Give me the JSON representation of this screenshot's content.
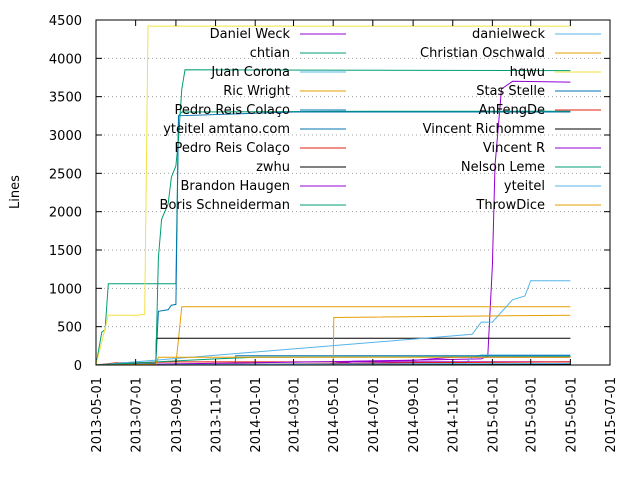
{
  "chart_data": {
    "type": "line",
    "xlabel": "",
    "ylabel": "Lines",
    "ylim": [
      0,
      4500
    ],
    "xlim": [
      "2013-05-01",
      "2015-07-01"
    ],
    "x_ticks": [
      "2013-05-01",
      "2013-07-01",
      "2013-09-01",
      "2013-11-01",
      "2014-01-01",
      "2014-03-01",
      "2014-05-01",
      "2014-07-01",
      "2014-09-01",
      "2014-11-01",
      "2015-01-01",
      "2015-03-01",
      "2015-05-01",
      "2015-07-01"
    ],
    "y_ticks": [
      0,
      500,
      1000,
      1500,
      2000,
      2500,
      3000,
      3500,
      4000,
      4500
    ],
    "grid": "horizontal dotted",
    "legend_position": "top, two columns",
    "series": [
      {
        "name": "Daniel Weck",
        "color": "#9400d3",
        "points": [
          [
            "2013-05-01",
            0
          ],
          [
            "2014-04-20",
            10
          ],
          [
            "2014-06-01",
            50
          ],
          [
            "2014-12-15",
            80
          ],
          [
            "2014-12-25",
            120
          ],
          [
            "2015-01-01",
            1300
          ],
          [
            "2015-01-05",
            2600
          ],
          [
            "2015-01-15",
            3600
          ],
          [
            "2015-02-01",
            3700
          ],
          [
            "2015-05-01",
            3690
          ]
        ]
      },
      {
        "name": "chtian",
        "color": "#009e73",
        "points": [
          [
            "2013-05-01",
            0
          ],
          [
            "2013-05-10",
            430
          ],
          [
            "2013-05-15",
            460
          ],
          [
            "2013-05-20",
            1060
          ],
          [
            "2013-09-01",
            1060
          ],
          [
            "2013-09-05",
            3250
          ],
          [
            "2013-09-10",
            3300
          ],
          [
            "2014-07-01",
            3310
          ],
          [
            "2015-05-01",
            3310
          ]
        ]
      },
      {
        "name": "Juan Corona",
        "color": "#56b4e9",
        "points": [
          [
            "2013-05-01",
            0
          ],
          [
            "2014-11-20",
            20
          ],
          [
            "2014-12-01",
            100
          ],
          [
            "2014-12-15",
            130
          ],
          [
            "2015-05-01",
            130
          ]
        ]
      },
      {
        "name": "Ric Wright",
        "color": "#e69f00",
        "points": [
          [
            "2013-05-01",
            0
          ],
          [
            "2013-09-01",
            10
          ],
          [
            "2013-09-10",
            760
          ],
          [
            "2015-05-01",
            760
          ]
        ]
      },
      {
        "name": "Pedro Reis Colaço",
        "color": "#0072b2",
        "points": [
          [
            "2013-05-01",
            0
          ],
          [
            "2013-12-01",
            0
          ],
          [
            "2013-12-02",
            120
          ],
          [
            "2015-05-01",
            120
          ]
        ]
      },
      {
        "name": "yteitel amtano.com",
        "color": "#0072b2",
        "points": [
          [
            "2013-05-01",
            0
          ],
          [
            "2013-08-01",
            20
          ],
          [
            "2013-08-05",
            700
          ],
          [
            "2013-08-20",
            720
          ],
          [
            "2013-08-25",
            780
          ],
          [
            "2013-09-01",
            790
          ],
          [
            "2013-09-05",
            3250
          ],
          [
            "2014-03-01",
            3300
          ],
          [
            "2015-05-01",
            3300
          ]
        ]
      },
      {
        "name": "Pedro Reis Colaço",
        "color": "#e51e10",
        "points": [
          [
            "2013-05-01",
            0
          ],
          [
            "2013-06-01",
            30
          ],
          [
            "2013-07-01",
            30
          ],
          [
            "2013-09-01",
            40
          ],
          [
            "2015-05-01",
            40
          ]
        ]
      },
      {
        "name": "zwhu",
        "color": "#000000",
        "points": [
          [
            "2013-05-01",
            0
          ],
          [
            "2013-08-01",
            0
          ],
          [
            "2013-08-02",
            350
          ],
          [
            "2015-05-01",
            350
          ]
        ]
      },
      {
        "name": "Brandon Haugen",
        "color": "#9400d3",
        "points": [
          [
            "2013-05-01",
            0
          ],
          [
            "2014-05-01",
            10
          ],
          [
            "2014-06-01",
            40
          ],
          [
            "2015-05-01",
            40
          ]
        ]
      },
      {
        "name": "Boris Schneiderman",
        "color": "#009e73",
        "points": [
          [
            "2013-05-01",
            0
          ],
          [
            "2013-08-01",
            20
          ],
          [
            "2013-08-05",
            1400
          ],
          [
            "2013-08-10",
            1900
          ],
          [
            "2013-08-20",
            2100
          ],
          [
            "2013-08-25",
            2450
          ],
          [
            "2013-09-01",
            2600
          ],
          [
            "2013-09-05",
            2950
          ],
          [
            "2013-09-10",
            3600
          ],
          [
            "2013-09-15",
            3850
          ],
          [
            "2015-05-01",
            3840
          ]
        ]
      },
      {
        "name": "danielweck",
        "color": "#56b4e9",
        "points": [
          [
            "2013-05-01",
            0
          ],
          [
            "2014-12-01",
            400
          ],
          [
            "2014-12-15",
            560
          ],
          [
            "2015-01-01",
            560
          ],
          [
            "2015-02-01",
            850
          ],
          [
            "2015-02-20",
            900
          ],
          [
            "2015-03-01",
            1100
          ],
          [
            "2015-05-01",
            1100
          ]
        ]
      },
      {
        "name": "Christian Oschwald",
        "color": "#e69f00",
        "points": [
          [
            "2013-05-01",
            0
          ],
          [
            "2014-05-01",
            0
          ],
          [
            "2014-05-02",
            620
          ],
          [
            "2015-05-01",
            650
          ]
        ]
      },
      {
        "name": "hqwu",
        "color": "#f0e442",
        "points": [
          [
            "2013-05-01",
            0
          ],
          [
            "2013-05-10",
            300
          ],
          [
            "2013-05-20",
            650
          ],
          [
            "2013-07-01",
            650
          ],
          [
            "2013-07-15",
            660
          ],
          [
            "2013-07-20",
            4420
          ],
          [
            "2015-05-01",
            4420
          ]
        ]
      },
      {
        "name": "Stas Stelle",
        "color": "#0072b2",
        "points": [
          [
            "2013-05-01",
            0
          ],
          [
            "2015-05-01",
            0
          ]
        ]
      },
      {
        "name": "AnFengDe",
        "color": "#e51e10",
        "points": [
          [
            "2013-05-01",
            0
          ],
          [
            "2014-06-01",
            20
          ],
          [
            "2014-09-01",
            30
          ],
          [
            "2015-05-01",
            40
          ]
        ]
      },
      {
        "name": "Vincent Richomme",
        "color": "#000000",
        "points": [
          [
            "2013-05-01",
            0
          ],
          [
            "2014-11-01",
            10
          ],
          [
            "2015-05-01",
            10
          ]
        ]
      },
      {
        "name": "Vincent R",
        "color": "#9400d3",
        "points": [
          [
            "2013-05-01",
            0
          ],
          [
            "2014-09-01",
            60
          ],
          [
            "2014-11-01",
            100
          ],
          [
            "2015-05-01",
            100
          ]
        ]
      },
      {
        "name": "Nelson Leme",
        "color": "#009e73",
        "points": [
          [
            "2013-05-01",
            0
          ],
          [
            "2013-11-01",
            80
          ],
          [
            "2014-01-01",
            100
          ],
          [
            "2015-05-01",
            110
          ]
        ]
      },
      {
        "name": "yteitel",
        "color": "#56b4e9",
        "points": [
          [
            "2013-05-01",
            0
          ],
          [
            "2014-01-01",
            10
          ],
          [
            "2015-05-01",
            20
          ]
        ]
      },
      {
        "name": "ThrowDice",
        "color": "#e69f00",
        "points": [
          [
            "2013-05-01",
            0
          ],
          [
            "2013-08-01",
            10
          ],
          [
            "2013-08-05",
            100
          ],
          [
            "2015-05-01",
            100
          ]
        ]
      }
    ]
  }
}
